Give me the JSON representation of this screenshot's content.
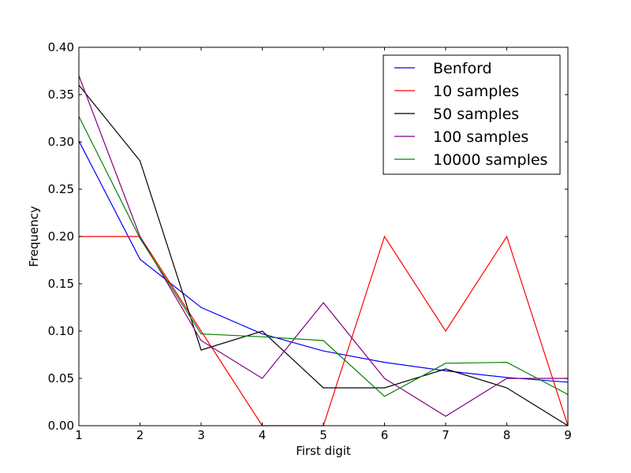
{
  "chart_data": {
    "type": "line",
    "title": "",
    "xlabel": "First digit",
    "ylabel": "Frequency",
    "xlim": [
      1,
      9
    ],
    "ylim": [
      0,
      0.4
    ],
    "x": [
      1,
      2,
      3,
      4,
      5,
      6,
      7,
      8,
      9
    ],
    "xticks": [
      "1",
      "2",
      "3",
      "4",
      "5",
      "6",
      "7",
      "8",
      "9"
    ],
    "yticks": [
      "0.00",
      "0.05",
      "0.10",
      "0.15",
      "0.20",
      "0.25",
      "0.30",
      "0.35",
      "0.40"
    ],
    "grid": false,
    "legend_position": "top-right",
    "series": [
      {
        "name": "Benford",
        "color": "#0000ff",
        "values": [
          0.301,
          0.176,
          0.125,
          0.097,
          0.079,
          0.067,
          0.058,
          0.051,
          0.046
        ]
      },
      {
        "name": "10 samples",
        "color": "#ff0000",
        "values": [
          0.2,
          0.2,
          0.1,
          0.0,
          0.0,
          0.2,
          0.1,
          0.2,
          0.0
        ]
      },
      {
        "name": "50 samples",
        "color": "#000000",
        "values": [
          0.36,
          0.28,
          0.08,
          0.1,
          0.04,
          0.04,
          0.06,
          0.04,
          0.0
        ]
      },
      {
        "name": "100 samples",
        "color": "#800080",
        "values": [
          0.37,
          0.2,
          0.09,
          0.05,
          0.13,
          0.05,
          0.01,
          0.05,
          0.05
        ]
      },
      {
        "name": "10000 samples",
        "color": "#008000",
        "values": [
          0.327,
          0.198,
          0.097,
          0.094,
          0.09,
          0.031,
          0.066,
          0.067,
          0.033
        ]
      }
    ]
  }
}
